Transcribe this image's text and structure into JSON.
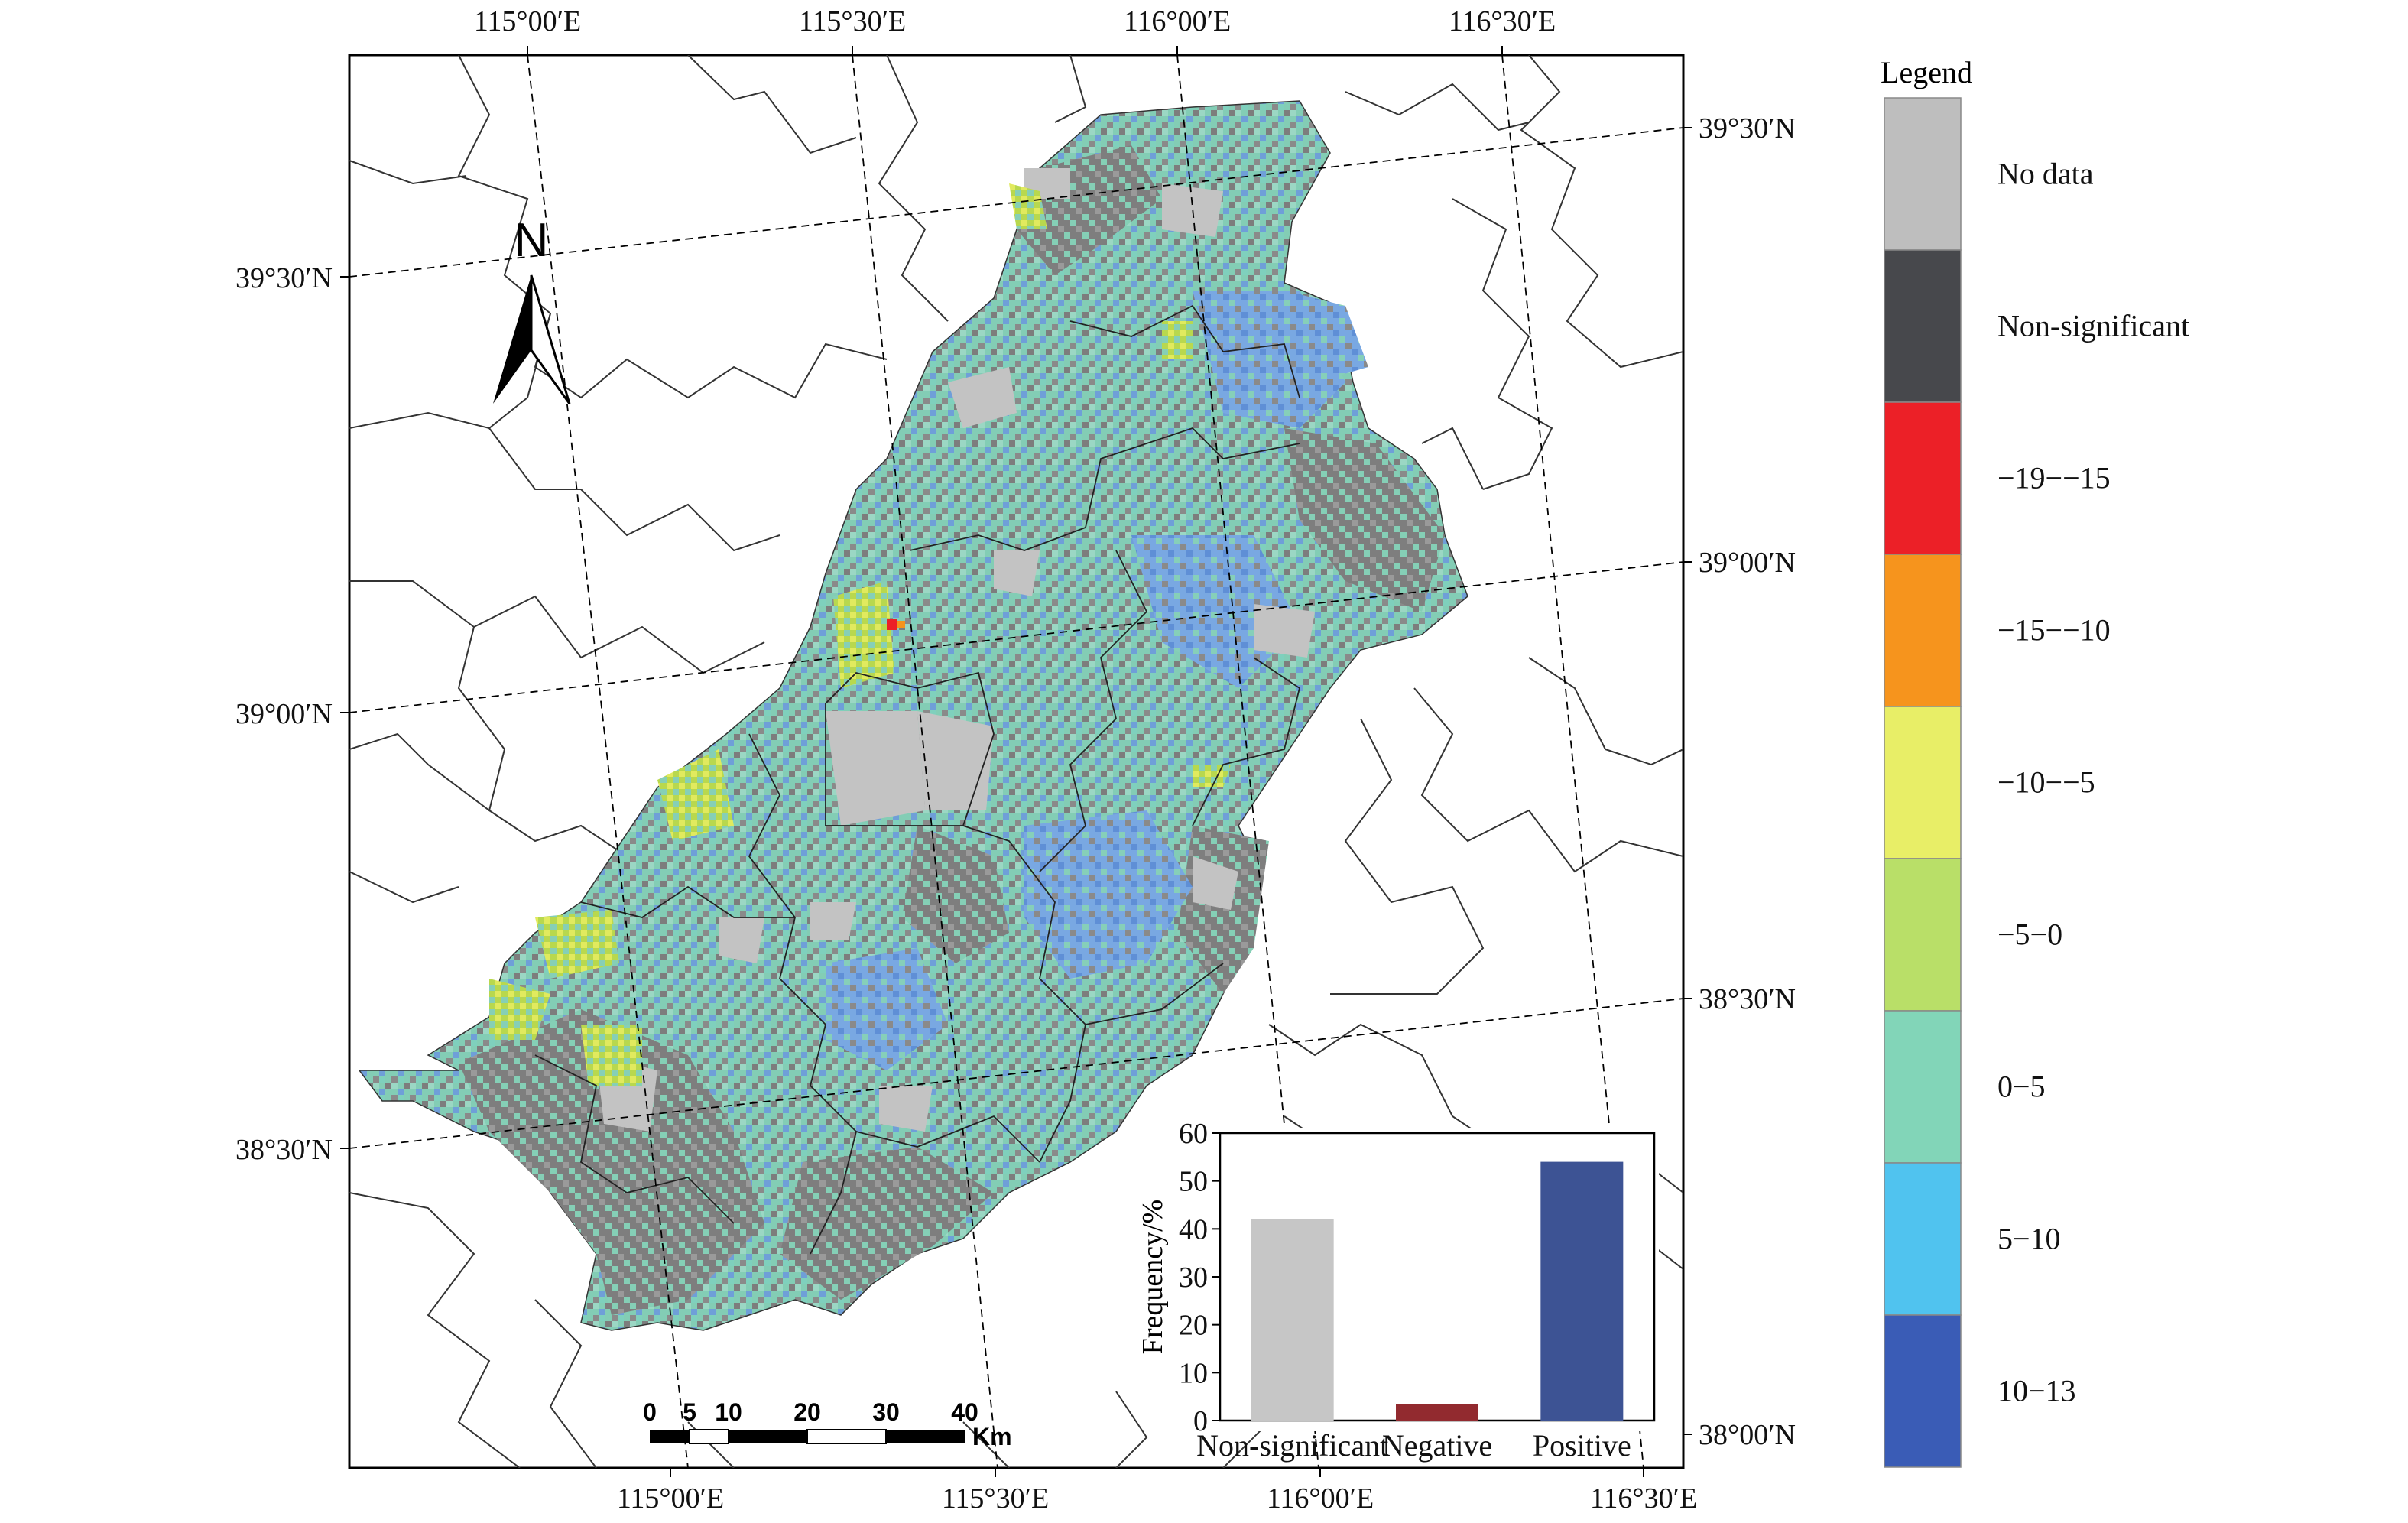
{
  "map": {
    "top_lon_labels": [
      "115°00′E",
      "115°30′E",
      "116°00′E",
      "116°30′E"
    ],
    "bottom_lon_labels": [
      "115°00′E",
      "115°30′E",
      "116°00′E",
      "116°30′E"
    ],
    "left_lat_labels": [
      "39°30′N",
      "39°00′N",
      "38°30′N"
    ],
    "right_lat_labels": [
      "39°30′N",
      "39°00′N",
      "38°30′N",
      "38°00′N"
    ]
  },
  "north_arrow": {
    "label": "N"
  },
  "scale_bar": {
    "ticks": [
      "0",
      "5",
      "10",
      "20",
      "30",
      "40"
    ],
    "unit": "Km"
  },
  "legend": {
    "title": "Legend",
    "items": [
      {
        "label": "No data",
        "color": "#bebebe"
      },
      {
        "label": "Non-significant",
        "color": "#47484c"
      },
      {
        "label": "−19−−15",
        "color": "#ec2027"
      },
      {
        "label": "−15−−10",
        "color": "#f6941d"
      },
      {
        "label": "−10−−5",
        "color": "#e8ee67"
      },
      {
        "label": "−5−0",
        "color": "#b9df68"
      },
      {
        "label": "0−5",
        "color": "#82d5b8"
      },
      {
        "label": "5−10",
        "color": "#50c3ef"
      },
      {
        "label": "10−13",
        "color": "#3a5cb6"
      }
    ]
  },
  "chart_data": {
    "type": "bar",
    "categories": [
      "Non-significant",
      "Negative",
      "Positive"
    ],
    "values": [
      42,
      3.5,
      54
    ],
    "colors": [
      "#c6c6c6",
      "#922a2f",
      "#3d5394"
    ],
    "ylabel": "Frequency/%",
    "ylim": [
      0,
      60
    ],
    "yticks": [
      "0",
      "10",
      "20",
      "30",
      "40",
      "50",
      "60"
    ]
  }
}
